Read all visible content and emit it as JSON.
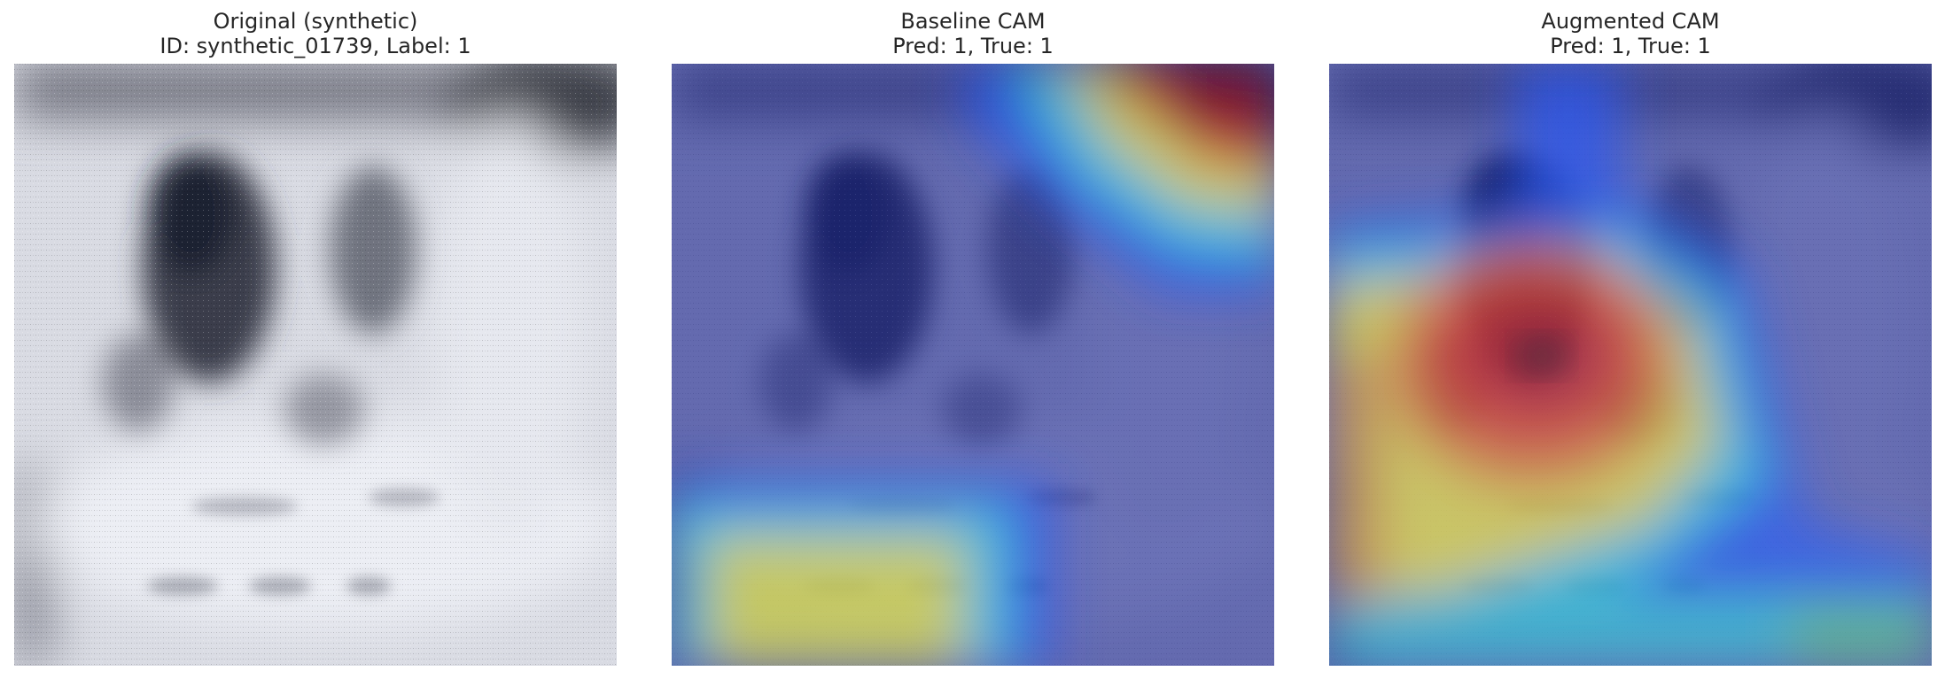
{
  "panels": [
    {
      "title_line1": "Original (synthetic)",
      "title_line2": "ID: synthetic_01739, Label: 1"
    },
    {
      "title_line1": "Baseline CAM",
      "title_line2": "Pred: 1, True: 1"
    },
    {
      "title_line1": "Augmented CAM",
      "title_line2": "Pred: 1, True: 1"
    }
  ]
}
